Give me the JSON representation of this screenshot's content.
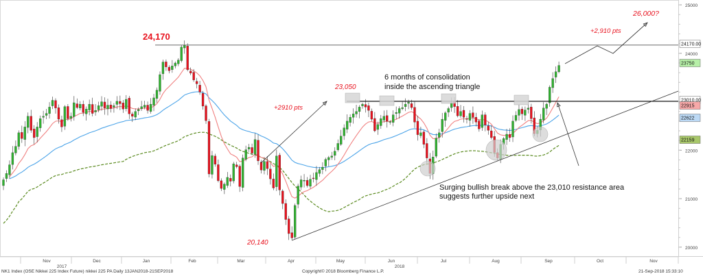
{
  "chart_data": {
    "type": "candlestick",
    "instrument": "NK1 Index (OSE Nikkei 225 Index Future) nikkei 225 PA  Daily 13JAN2018-21SEP2018",
    "copyright": "Copyright© 2018 Bloomberg Finance L.P.",
    "timestamp": "21-Sep-2018 15:33:10",
    "x_months": [
      "Nov",
      "Dec",
      "Jan",
      "Feb",
      "Mar",
      "Apr",
      "May",
      "Jun",
      "Jul",
      "Aug",
      "Sep",
      "Oct",
      "Nov"
    ],
    "x_years": [
      "2017",
      "2018"
    ],
    "y_ticks": [
      20000,
      21000,
      22000,
      23000,
      24000,
      25000
    ],
    "ylim": [
      19800,
      25100
    ],
    "price_labels": [
      {
        "text": "24170.00",
        "value": 24170,
        "color": "#ffffff"
      },
      {
        "text": "23750",
        "value": 23750,
        "color": "#b7f0a8"
      },
      {
        "text": "23010.00",
        "value": 23010,
        "color": "#ffffff"
      },
      {
        "text": "22915",
        "value": 22915,
        "color": "#f7a8a8"
      },
      {
        "text": "22622",
        "value": 22622,
        "color": "#bcd9f5"
      },
      {
        "text": "22159",
        "value": 22159,
        "color": "#a8c76a"
      }
    ],
    "resistance_level": 23010,
    "high_level": 24170,
    "closes": [
      21390,
      21520,
      21700,
      21950,
      22080,
      22360,
      22240,
      22480,
      22700,
      22410,
      22260,
      22480,
      22650,
      22700,
      22760,
      22890,
      23030,
      22870,
      22640,
      22480,
      22900,
      22650,
      22700,
      22980,
      22880,
      22950,
      22780,
      22850,
      22950,
      22760,
      22820,
      22920,
      23000,
      22870,
      22930,
      22860,
      22920,
      23010,
      22960,
      22850,
      23050,
      22750,
      22700,
      22800,
      22840,
      22900,
      22930,
      22820,
      22950,
      23080,
      23240,
      23560,
      23820,
      23720,
      23640,
      23740,
      23800,
      23860,
      24130,
      24170,
      23660,
      23590,
      23450,
      23370,
      23200,
      22910,
      22610,
      21510,
      21890,
      21710,
      21370,
      21210,
      21300,
      21440,
      21360,
      21720,
      21660,
      21250,
      21840,
      22010,
      22060,
      21940,
      22220,
      21780,
      21590,
      21770,
      21620,
      21410,
      21220,
      21880,
      21180,
      20900,
      20570,
      20280,
      20190,
      20860,
      21260,
      21390,
      21380,
      21270,
      21400,
      21420,
      21540,
      21600,
      21650,
      21810,
      21850,
      21880,
      21980,
      22140,
      22290,
      22460,
      22600,
      22680,
      22750,
      22800,
      22890,
      22950,
      22890,
      22820,
      22640,
      22400,
      22530,
      22650,
      22700,
      22600,
      22590,
      22730,
      22780,
      22860,
      22880,
      22950,
      22990,
      22880,
      22580,
      22320,
      22360,
      22120,
      21840,
      21520,
      21860,
      22250,
      22360,
      22640,
      22770,
      22860,
      22980,
      22900,
      22710,
      22800,
      22680,
      22640,
      22760,
      22680,
      22580,
      22440,
      22730,
      22520,
      22410,
      22260,
      21950,
      21840,
      22120,
      22240,
      22330,
      22260,
      22600,
      22720,
      22840,
      22750,
      22830,
      22870,
      22650,
      22340,
      22410,
      22640,
      22870,
      22950,
      23300,
      23480,
      23620,
      23750
    ],
    "ema_fast_label": "red moving average",
    "annotations": [
      {
        "text": "24,170",
        "color": "#e8111d"
      },
      {
        "text": "23,050",
        "color": "#e8111d"
      },
      {
        "text": "20,140",
        "color": "#e8111d"
      },
      {
        "text": "+2910 pts",
        "color": "#e8111d"
      },
      {
        "text": "+2,910 pts",
        "color": "#e8111d"
      },
      {
        "text": "26,000?",
        "color": "#e8111d"
      },
      {
        "text": "6 months of consolidation",
        "color": "#111111"
      },
      {
        "text": "inside the ascending triangle",
        "color": "#111111"
      },
      {
        "text": "Surging bullish break above the 23,010 resistance area",
        "color": "#111111"
      },
      {
        "text": "suggests further upside next",
        "color": "#111111"
      }
    ],
    "colors": {
      "up": "#2fb12f",
      "down": "#e8111d",
      "ema_fast": "#f08080",
      "ema_mid": "#4aa3e8",
      "sma_slow": "#5a8a1f"
    }
  }
}
